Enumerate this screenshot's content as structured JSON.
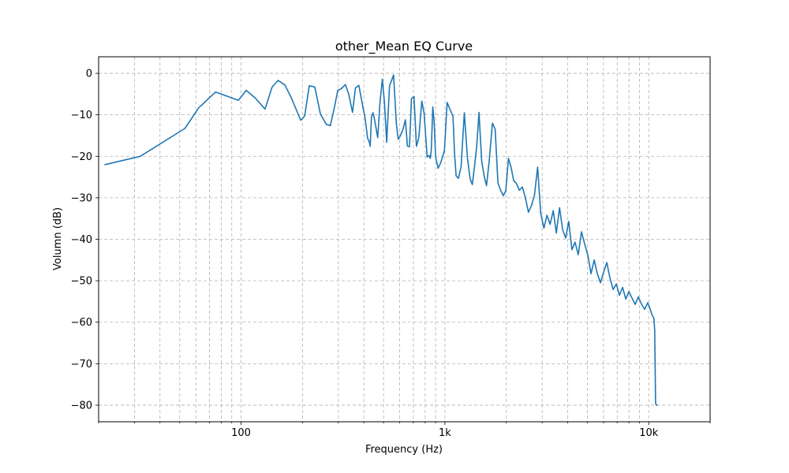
{
  "chart_data": {
    "type": "line",
    "title": "other_Mean EQ Curve",
    "xlabel": "Frequency (Hz)",
    "ylabel": "Volumn (dB)",
    "xscale": "log",
    "xlim": [
      20,
      20000
    ],
    "ylim": [
      -84,
      4
    ],
    "grid": true,
    "grid_style": "dashed",
    "line_color": "#1f77b4",
    "x_tick_labels": [
      {
        "value": 100,
        "label": "100"
      },
      {
        "value": 1000,
        "label": "1k"
      },
      {
        "value": 10000,
        "label": "10k"
      }
    ],
    "y_ticks": [
      0,
      -10,
      -20,
      -30,
      -40,
      -50,
      -60,
      -70,
      -80
    ],
    "y_tick_labels": [
      "0",
      "−10",
      "−20",
      "−30",
      "−40",
      "−50",
      "−60",
      "−70",
      "−80"
    ],
    "series": [
      {
        "x": [
          21.5,
          32,
          53,
          62,
          75,
          97,
          106,
          117,
          131,
          142,
          152,
          164,
          176,
          196,
          205,
          216,
          230,
          245,
          262,
          274,
          288,
          298,
          310,
          325,
          338,
          352,
          364,
          378,
          395,
          405,
          418,
          425,
          430,
          436,
          444,
          452,
          468,
          480,
          493,
          505,
          518,
          535,
          560,
          578,
          590,
          602,
          622,
          640,
          655,
          670,
          685,
          705,
          725,
          745,
          770,
          790,
          818,
          836,
          848,
          858,
          872,
          885,
          900,
          925,
          955,
          995,
          1025,
          1065,
          1095,
          1115,
          1135,
          1165,
          1200,
          1245,
          1290,
          1330,
          1362,
          1395,
          1432,
          1470,
          1515,
          1560,
          1600,
          1650,
          1710,
          1765,
          1820,
          1880,
          1935,
          1990,
          2050,
          2110,
          2175,
          2240,
          2320,
          2400,
          2480,
          2570,
          2660,
          2750,
          2850,
          2950,
          3060,
          3170,
          3280,
          3400,
          3520,
          3650,
          3780,
          3910,
          4050,
          4200,
          4350,
          4510,
          4680,
          4850,
          5030,
          5210,
          5400,
          5600,
          5800,
          6010,
          6230,
          6450,
          6690,
          6930,
          7180,
          7440,
          7710,
          7990,
          8280,
          8580,
          8890,
          9210,
          9540,
          9890,
          10200,
          10400,
          10600,
          10700,
          10800,
          10900,
          11000
        ],
        "y": [
          -22,
          -20,
          -13.3,
          -8.3,
          -4.5,
          -6.5,
          -4.1,
          -5.9,
          -8.6,
          -3.3,
          -1.7,
          -2.8,
          -5.8,
          -11.3,
          -10.3,
          -3,
          -3.3,
          -9.8,
          -12.3,
          -12.6,
          -7.9,
          -4.1,
          -3.7,
          -2.7,
          -5.2,
          -9.4,
          -3.5,
          -2.9,
          -7.9,
          -10.5,
          -15.7,
          -16.4,
          -17.6,
          -10.5,
          -9.5,
          -11.2,
          -15.5,
          -7.1,
          -1.4,
          -7.1,
          -16.6,
          -3,
          -0.4,
          -12.2,
          -15.9,
          -15.2,
          -13.6,
          -11.2,
          -17.5,
          -17.7,
          -6.1,
          -5.6,
          -17.6,
          -15.4,
          -6.7,
          -9.6,
          -20.2,
          -19.8,
          -20.5,
          -18.3,
          -8.1,
          -11.5,
          -20.1,
          -22.9,
          -21.5,
          -18.6,
          -7,
          -9,
          -10.3,
          -19.3,
          -24.7,
          -25.3,
          -22.5,
          -9.5,
          -20.5,
          -25.5,
          -26.8,
          -22.8,
          -17.6,
          -9.4,
          -21.2,
          -24.9,
          -27.1,
          -21,
          -12,
          -13.5,
          -26.4,
          -28.3,
          -29.5,
          -28.3,
          -20.5,
          -22.6,
          -25.9,
          -26.5,
          -28.2,
          -27.4,
          -29.9,
          -33.5,
          -31.8,
          -29.4,
          -22.6,
          -33.7,
          -37.3,
          -34.2,
          -36.4,
          -33.1,
          -38.5,
          -32.4,
          -37.7,
          -39.7,
          -35.7,
          -42.5,
          -40.7,
          -43.7,
          -38.2,
          -41.2,
          -43.9,
          -48.3,
          -45,
          -48.4,
          -50.5,
          -47.9,
          -45.6,
          -49.3,
          -52.1,
          -50.8,
          -53.5,
          -51.6,
          -54.4,
          -52.6,
          -54.2,
          -55.7,
          -53.9,
          -55.6,
          -56.9,
          -55.3,
          -57.1,
          -58.3,
          -59.1,
          -62,
          -79.5,
          -80,
          -80
        ]
      }
    ]
  }
}
